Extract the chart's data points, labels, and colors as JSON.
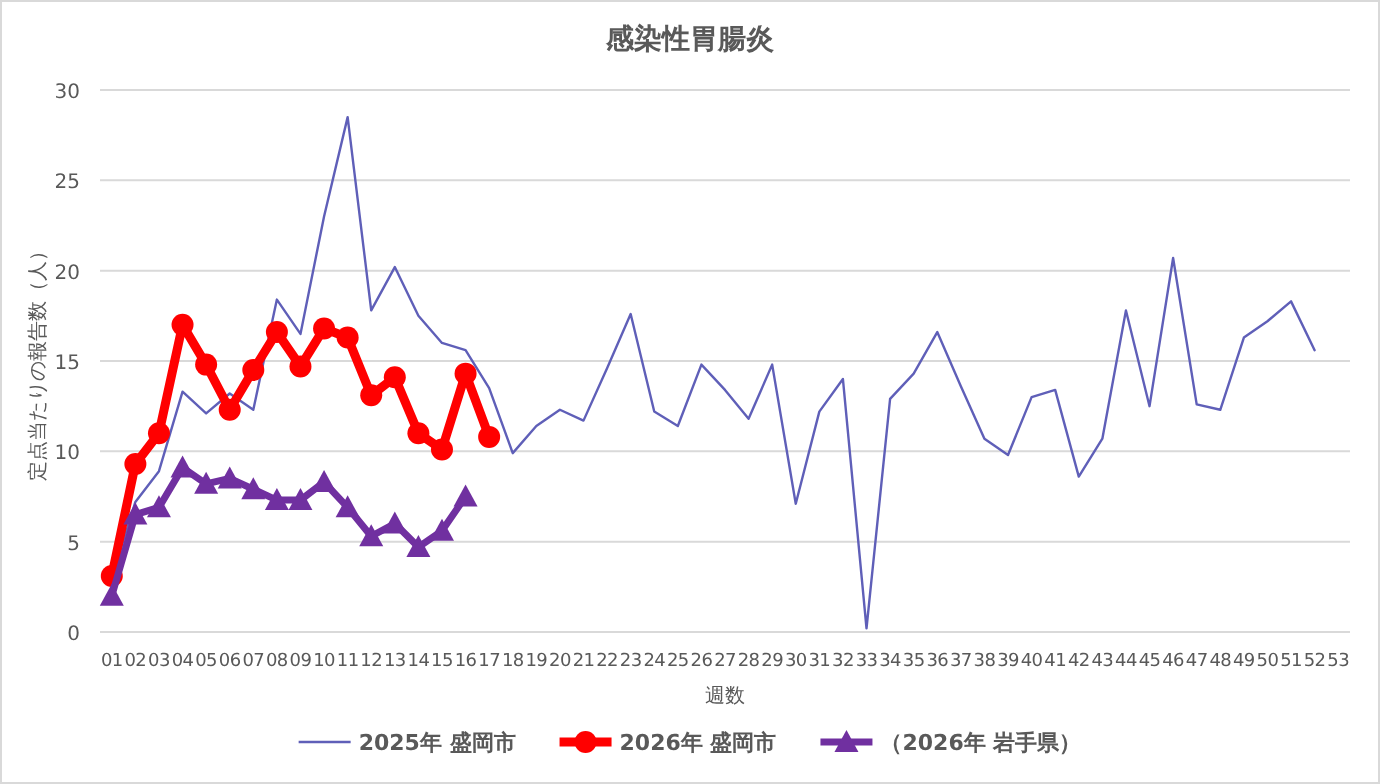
{
  "chart_data": {
    "type": "line",
    "title": "感染性胃腸炎",
    "xlabel": "週数",
    "ylabel": "定点当たりの報告数（人）",
    "categories": [
      "01",
      "02",
      "03",
      "04",
      "05",
      "06",
      "07",
      "08",
      "09",
      "10",
      "11",
      "12",
      "13",
      "14",
      "15",
      "16",
      "17",
      "18",
      "19",
      "20",
      "21",
      "22",
      "23",
      "24",
      "25",
      "26",
      "27",
      "28",
      "29",
      "30",
      "31",
      "32",
      "33",
      "34",
      "35",
      "36",
      "37",
      "38",
      "39",
      "40",
      "41",
      "42",
      "43",
      "44",
      "45",
      "46",
      "47",
      "48",
      "49",
      "50",
      "51",
      "52",
      "53"
    ],
    "ylim": [
      0,
      30
    ],
    "yticks": [
      0,
      5,
      10,
      15,
      20,
      25,
      30
    ],
    "grid": "y",
    "legend": "bottom",
    "series": [
      {
        "name": "2025年 盛岡市",
        "color": "#5f5fb8",
        "marker": "none",
        "values": [
          3.0,
          7.2,
          8.9,
          13.3,
          12.1,
          13.2,
          12.3,
          18.4,
          16.5,
          23.0,
          28.5,
          17.8,
          20.2,
          17.5,
          16.0,
          15.6,
          13.5,
          9.9,
          11.4,
          12.3,
          11.7,
          14.6,
          17.6,
          12.2,
          11.4,
          14.8,
          13.4,
          11.8,
          14.8,
          7.1,
          12.2,
          14.0,
          0.2,
          12.9,
          14.3,
          16.6,
          13.6,
          10.7,
          9.8,
          13.0,
          13.4,
          8.6,
          10.7,
          17.8,
          12.5,
          20.7,
          12.6,
          12.3,
          16.3,
          17.2,
          18.3,
          15.6,
          null
        ]
      },
      {
        "name": "2026年 盛岡市",
        "color": "#ff0000",
        "marker": "circle",
        "values": [
          3.1,
          9.3,
          11.0,
          17.0,
          14.8,
          12.3,
          14.5,
          16.6,
          14.7,
          16.8,
          16.3,
          13.1,
          14.1,
          11.0,
          10.1,
          14.3,
          10.8,
          null,
          null,
          null,
          null,
          null,
          null,
          null,
          null,
          null,
          null,
          null,
          null,
          null,
          null,
          null,
          null,
          null,
          null,
          null,
          null,
          null,
          null,
          null,
          null,
          null,
          null,
          null,
          null,
          null,
          null,
          null,
          null,
          null,
          null,
          null,
          null
        ]
      },
      {
        "name": "（2026年 岩手県）",
        "color": "#7030a0",
        "marker": "triangle",
        "values": [
          2.0,
          6.5,
          6.9,
          9.1,
          8.2,
          8.5,
          7.9,
          7.3,
          7.3,
          8.3,
          6.9,
          5.3,
          6.0,
          4.7,
          5.6,
          7.5,
          null,
          null,
          null,
          null,
          null,
          null,
          null,
          null,
          null,
          null,
          null,
          null,
          null,
          null,
          null,
          null,
          null,
          null,
          null,
          null,
          null,
          null,
          null,
          null,
          null,
          null,
          null,
          null,
          null,
          null,
          null,
          null,
          null,
          null,
          null,
          null,
          null
        ]
      }
    ]
  }
}
